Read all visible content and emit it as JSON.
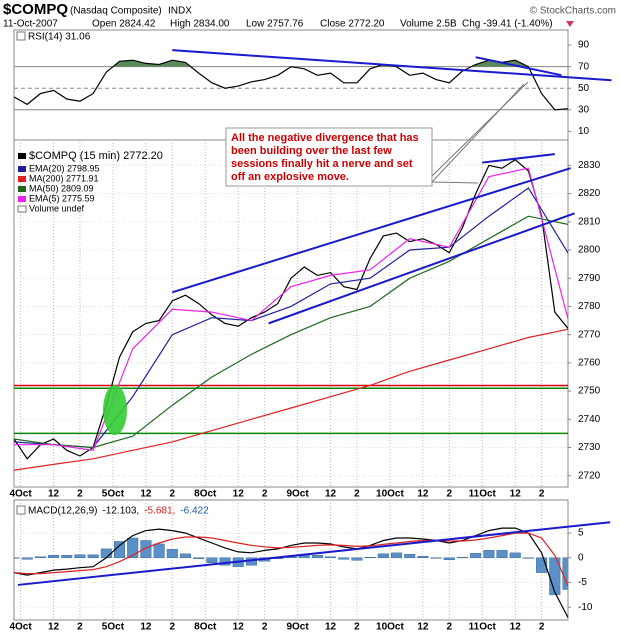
{
  "header": {
    "symbol": "$COMPQ",
    "name": "(Nasdaq Composite)",
    "exchange": "INDX",
    "credit": "© StockCharts.com",
    "date": "11-Oct-2007",
    "open": "Open 2824.42",
    "high": "High 2834.00",
    "low": "Low 2757.76",
    "close": "Close 2772.20",
    "volume": "Volume 2.5B",
    "change": "Chg -39.41 (-1.40%)"
  },
  "annotation": {
    "lines": [
      "All the negative divergence that has",
      "been building over the last few",
      "sessions finally hit a nerve and set",
      "off an explosive move."
    ]
  },
  "chart_data": [
    {
      "type": "line",
      "legend_label": "RSI(14) 31.06",
      "xlim": [
        0,
        42
      ],
      "ylim": [
        2,
        104
      ],
      "yticks": [
        10,
        30,
        50,
        70,
        90
      ],
      "hlines": [
        {
          "value": 70,
          "color": "#888888"
        },
        {
          "value": 50,
          "color": "#888888",
          "dash": true
        },
        {
          "value": 30,
          "color": "#888888"
        }
      ],
      "fill_above": {
        "value": 70,
        "color": "#5a8a5a"
      },
      "fill_below": {
        "value": 30,
        "color": "#a05050"
      },
      "trendlines": [
        {
          "x1": 12,
          "y1": 85.3,
          "x2": 45.3,
          "y2": 57.4
        },
        {
          "x1": 35,
          "y1": 78.8,
          "x2": 41.5,
          "y2": 62.1
        }
      ],
      "trend_color": "#1a1acc",
      "series": [
        {
          "name": "RSI(14)",
          "color": "#000000",
          "values": [
            42,
            35,
            45,
            48,
            40,
            38,
            45,
            65,
            75,
            76,
            73,
            72,
            76,
            74,
            64,
            55,
            50,
            52,
            56,
            58,
            62,
            70,
            68,
            62,
            64,
            55,
            55,
            68,
            72,
            70,
            62,
            64,
            58,
            55,
            66,
            72,
            76,
            74,
            76,
            70,
            45,
            30,
            31.06
          ]
        }
      ]
    },
    {
      "type": "line",
      "xlim": [
        0,
        42
      ],
      "ylim": [
        2716,
        2839
      ],
      "yticks": [
        2720,
        2730,
        2740,
        2750,
        2760,
        2770,
        2780,
        2790,
        2800,
        2810,
        2820,
        2830
      ],
      "xticks": [
        {
          "value": 0.5,
          "label": "4Oct"
        },
        {
          "value": 3,
          "label": "12"
        },
        {
          "value": 5,
          "label": "2"
        },
        {
          "value": 7.5,
          "label": "5Oct"
        },
        {
          "value": 10,
          "label": "12"
        },
        {
          "value": 12,
          "label": "2"
        },
        {
          "value": 14.5,
          "label": "8Oct"
        },
        {
          "value": 17,
          "label": "12"
        },
        {
          "value": 19,
          "label": "2"
        },
        {
          "value": 21.5,
          "label": "9Oct"
        },
        {
          "value": 24,
          "label": "12"
        },
        {
          "value": 26,
          "label": "2"
        },
        {
          "value": 28.5,
          "label": "10Oct"
        },
        {
          "value": 31,
          "label": "12"
        },
        {
          "value": 33,
          "label": "2"
        },
        {
          "value": 35.5,
          "label": "11Oct"
        },
        {
          "value": 38,
          "label": "12"
        },
        {
          "value": 40,
          "label": "2"
        }
      ],
      "grid": true,
      "hlines": [
        {
          "value": 2752,
          "color": "#dd0000"
        },
        {
          "value": 2751,
          "color": "#008800"
        },
        {
          "value": 2735,
          "color": "#008800"
        }
      ],
      "trendlines": [
        {
          "x1": 12,
          "y1": 2785,
          "x2": 42.2,
          "y2": 2829
        },
        {
          "x1": 19.3,
          "y1": 2774,
          "x2": 42.5,
          "y2": 2813
        },
        {
          "x1": 35.5,
          "y1": 2831,
          "x2": 41,
          "y2": 2834
        }
      ],
      "trend_color": "#1a1acc",
      "legend_extra": "Volume undef",
      "series": [
        {
          "name": "$COMPQ (15 min) 2772.20",
          "color": "#000000",
          "values": [
            2733,
            2726,
            2731,
            2733,
            2729,
            2727,
            2730,
            2745,
            2762,
            2771,
            2774,
            2775,
            2782,
            2784,
            2781,
            2777,
            2774,
            2773,
            2776,
            2778,
            2781,
            2790,
            2794,
            2791,
            2792,
            2787,
            2786,
            2797,
            2805,
            2806,
            2803,
            2804,
            2802,
            2799,
            2808,
            2820,
            2830,
            2829,
            2832,
            2828,
            2812,
            2778,
            2772.2
          ]
        },
        {
          "name": "EMA(20) 2798.95",
          "color": "#1f1f99",
          "x": [
            0,
            3,
            6,
            9,
            12,
            15,
            18,
            21,
            24,
            27,
            30,
            33,
            36,
            39,
            42
          ],
          "values": [
            2732,
            2731,
            2730,
            2748,
            2770,
            2776,
            2775,
            2780,
            2788,
            2790,
            2800,
            2801,
            2812,
            2822,
            2798.95
          ]
        },
        {
          "name": "MA(200) 2771.91",
          "color": "#dd2222",
          "x": [
            0,
            3,
            6,
            9,
            12,
            15,
            18,
            21,
            24,
            27,
            30,
            33,
            36,
            39,
            42
          ],
          "values": [
            2722,
            2724,
            2726,
            2729,
            2732,
            2736,
            2740,
            2744,
            2748,
            2752,
            2757,
            2761,
            2765,
            2769,
            2771.91
          ]
        },
        {
          "name": "MA(50) 2809.09",
          "color": "#226622",
          "x": [
            0,
            3,
            6,
            9,
            12,
            15,
            18,
            21,
            24,
            27,
            30,
            33,
            36,
            39,
            42
          ],
          "values": [
            2733,
            2731,
            2730,
            2734,
            2745,
            2755,
            2763,
            2770,
            2776,
            2780,
            2790,
            2796,
            2804,
            2812,
            2809.09
          ]
        },
        {
          "name": "EMA(5) 2775.59",
          "color": "#ee22ee",
          "x": [
            0,
            3,
            6,
            9,
            12,
            15,
            18,
            21,
            24,
            27,
            30,
            33,
            36,
            39,
            42
          ],
          "values": [
            2731,
            2731,
            2729,
            2765,
            2779,
            2778,
            2775,
            2787,
            2791,
            2793,
            2804,
            2801,
            2826,
            2829,
            2775.59
          ]
        }
      ]
    },
    {
      "type": "line",
      "legend_label": "MACD(12,26,9)",
      "xlim": [
        0,
        42
      ],
      "ylim": [
        -12.6,
        11.7
      ],
      "yticks": [
        5,
        0,
        -5,
        -10
      ],
      "xticks": [
        {
          "value": 0.5,
          "label": "4Oct"
        },
        {
          "value": 3,
          "label": "12"
        },
        {
          "value": 5,
          "label": "2"
        },
        {
          "value": 7.5,
          "label": "5Oct"
        },
        {
          "value": 10,
          "label": "12"
        },
        {
          "value": 12,
          "label": "2"
        },
        {
          "value": 14.5,
          "label": "8Oct"
        },
        {
          "value": 17,
          "label": "12"
        },
        {
          "value": 19,
          "label": "2"
        },
        {
          "value": 21.5,
          "label": "9Oct"
        },
        {
          "value": 24,
          "label": "12"
        },
        {
          "value": 26,
          "label": "2"
        },
        {
          "value": 28.5,
          "label": "10Oct"
        },
        {
          "value": 31,
          "label": "12"
        },
        {
          "value": 33,
          "label": "2"
        },
        {
          "value": 35.5,
          "label": "11Oct"
        },
        {
          "value": 38,
          "label": "12"
        },
        {
          "value": 40,
          "label": "2"
        }
      ],
      "grid": true,
      "trendlines": [
        {
          "x1": 0.3,
          "y1": -5.5,
          "x2": 45.2,
          "y2": 7.2
        }
      ],
      "trend_color": "#1a1acc",
      "series": [
        {
          "name": "-6.422",
          "color": "#5b8fc7",
          "style": "bar",
          "values": [
            0,
            -0.3,
            0.2,
            0.5,
            0.5,
            0.6,
            0.6,
            1.8,
            3.3,
            4,
            3.5,
            2.8,
            1.7,
            0.8,
            -0.2,
            -1,
            -1.5,
            -1.8,
            -1.5,
            -0.7,
            -0.2,
            0.4,
            0.7,
            0.5,
            0.2,
            -0.3,
            -0.5,
            0.1,
            0.8,
            1,
            0.7,
            0.3,
            0,
            -0.4,
            0.1,
            0.9,
            1.5,
            1.5,
            1,
            0,
            -3,
            -7.5,
            -6.422
          ]
        },
        {
          "name": "-12.103,",
          "color": "#000000",
          "values": [
            -3,
            -3.5,
            -3,
            -2.5,
            -2.3,
            -2,
            -1.8,
            0,
            2.5,
            4.5,
            5.5,
            5.8,
            5.5,
            5,
            4,
            3,
            2,
            1.2,
            1,
            1.5,
            1.8,
            2.5,
            3,
            3,
            2.8,
            2.2,
            1.8,
            2.5,
            3.5,
            4,
            4,
            3.8,
            3.5,
            3,
            3.5,
            4.5,
            5.5,
            6,
            6,
            5,
            1,
            -7,
            -12.103
          ]
        },
        {
          "name": "-5.681,",
          "color": "#dd2222",
          "values": [
            -3,
            -3.2,
            -3.2,
            -3,
            -2.8,
            -2.6,
            -2.4,
            -1.8,
            -0.8,
            0.5,
            2,
            3,
            3.8,
            4.2,
            4.2,
            4,
            3.5,
            3,
            2.5,
            2.2,
            2,
            2.1,
            2.3,
            2.5,
            2.6,
            2.5,
            2.3,
            2.4,
            2.7,
            3,
            3.3,
            3.5,
            3.5,
            3.4,
            3.4,
            3.6,
            4,
            4.5,
            5,
            5,
            4,
            0.5,
            -5.681
          ]
        }
      ]
    }
  ]
}
